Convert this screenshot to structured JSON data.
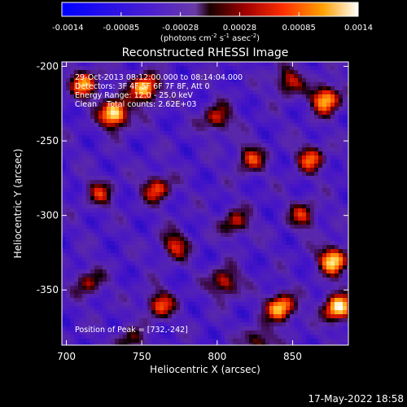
{
  "chart_data": {
    "type": "heatmap",
    "title": "Reconstructed RHESSI Image",
    "xlabel": "Heliocentric X (arcsec)",
    "ylabel": "Heliocentric Y (arcsec)",
    "xlim": [
      697,
      887
    ],
    "ylim": [
      -387,
      -197
    ],
    "x_ticks": [
      700,
      750,
      800,
      850
    ],
    "y_ticks": [
      -200,
      -250,
      -300,
      -350
    ],
    "colorbar": {
      "range": [
        -0.0014,
        0.0014
      ],
      "ticks": [
        "-0.0014",
        "-0.00085",
        "-0.00028",
        "0.00028",
        "0.00085",
        "0.0014"
      ],
      "unit_prefix": "(photons cm",
      "unit_mid": " s",
      "unit_end": " asec",
      "unit_close": ")",
      "exp1": "-2",
      "exp2": "-1",
      "exp3": "-2"
    },
    "annotations": [
      "29-Oct-2013 08:12:00.000 to 08:14:04.000",
      "Detectors: 3F 4F 5F 6F 7F 8F, Att 0",
      "Energy Range: 12.0 - 25.0 keV",
      "Clean    Total counts: 2.62E+03"
    ],
    "peak_label": "Position of Peak = [732,-242]",
    "peak": [
      732,
      -242
    ],
    "hotspots": [
      {
        "x": 732,
        "y": -232,
        "v": 1.0
      },
      {
        "x": 752,
        "y": -215,
        "v": 0.9
      },
      {
        "x": 712,
        "y": -212,
        "v": 0.7
      },
      {
        "x": 800,
        "y": -235,
        "v": 0.55
      },
      {
        "x": 872,
        "y": -222,
        "v": 0.85
      },
      {
        "x": 847,
        "y": -210,
        "v": 0.55
      },
      {
        "x": 822,
        "y": -262,
        "v": 0.55
      },
      {
        "x": 862,
        "y": -262,
        "v": 0.6
      },
      {
        "x": 760,
        "y": -282,
        "v": 0.6
      },
      {
        "x": 722,
        "y": -285,
        "v": 0.45
      },
      {
        "x": 772,
        "y": -320,
        "v": 0.55
      },
      {
        "x": 812,
        "y": -305,
        "v": 0.5
      },
      {
        "x": 857,
        "y": -300,
        "v": 0.5
      },
      {
        "x": 877,
        "y": -330,
        "v": 0.9
      },
      {
        "x": 880,
        "y": -362,
        "v": 0.95
      },
      {
        "x": 842,
        "y": -362,
        "v": 0.85
      },
      {
        "x": 805,
        "y": -345,
        "v": 0.6
      },
      {
        "x": 762,
        "y": -360,
        "v": 0.6
      },
      {
        "x": 715,
        "y": -345,
        "v": 0.45
      },
      {
        "x": 828,
        "y": -385,
        "v": 0.5
      },
      {
        "x": 742,
        "y": -385,
        "v": 0.4
      }
    ]
  },
  "footer": {
    "timestamp": "17-May-2022 18:58"
  }
}
